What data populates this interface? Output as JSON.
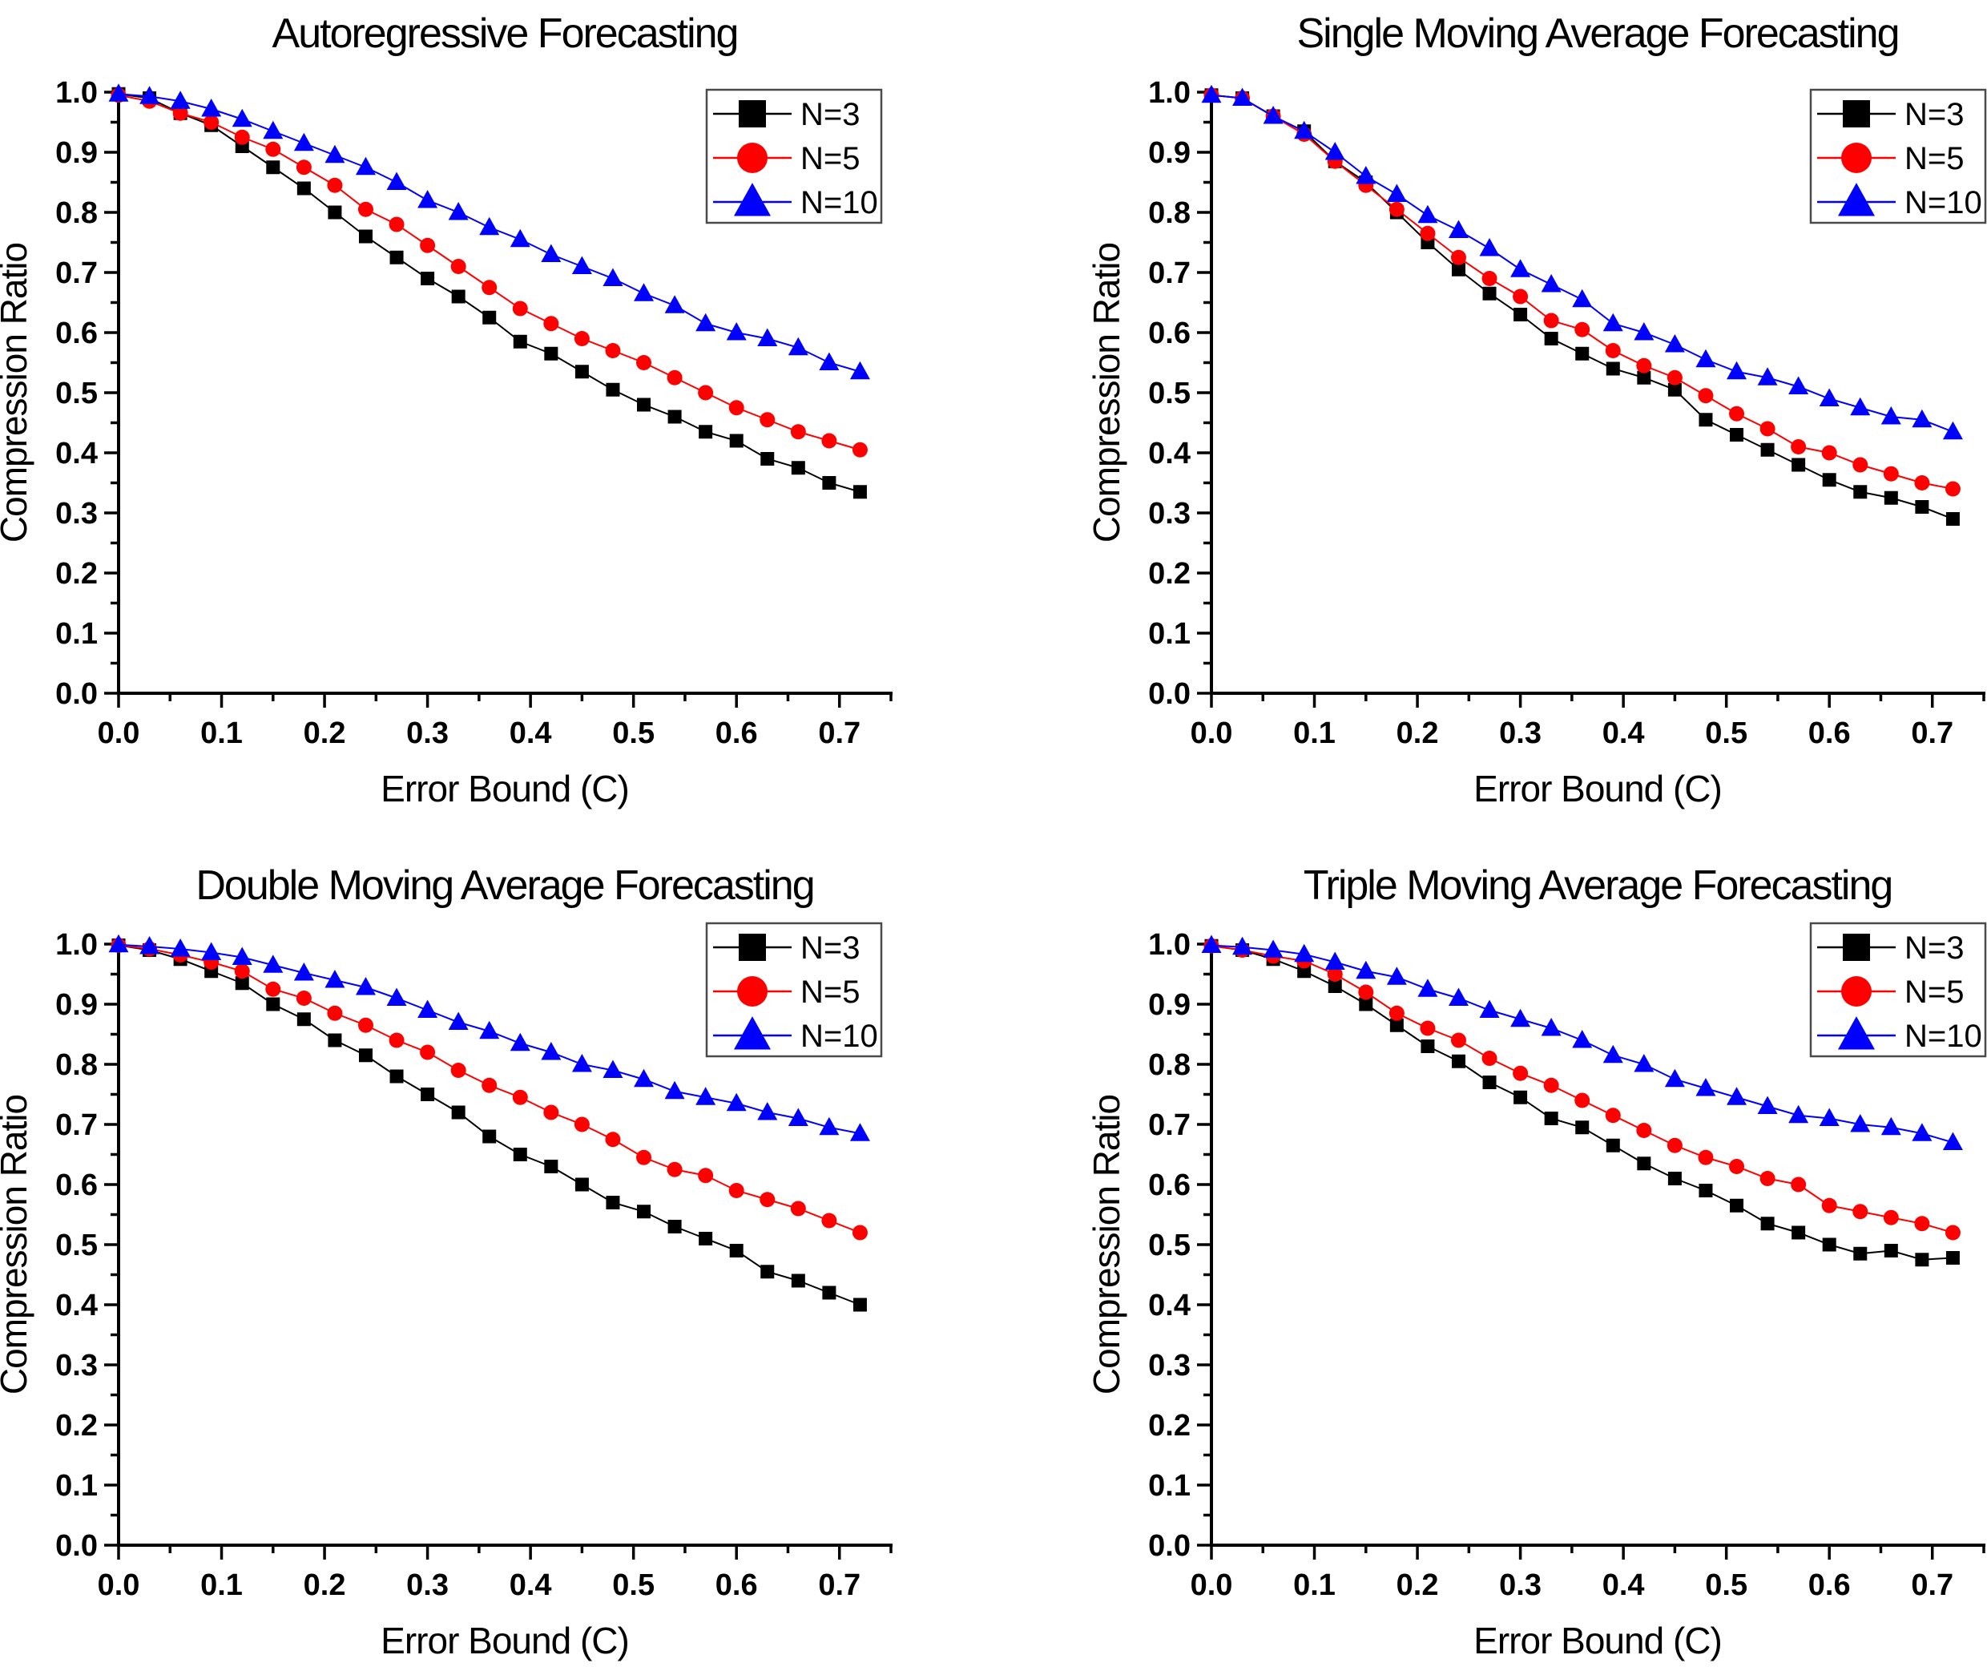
{
  "figure": {
    "background": "#ffffff",
    "x_label": "Error Bound (C)",
    "y_label": "Compression Ratio",
    "legend_labels": [
      "N=3",
      "N=5",
      "N=10"
    ],
    "series_colors": [
      "#000000",
      "#ff0000",
      "#0000ff"
    ],
    "series_markers": [
      "square",
      "circle",
      "triangle"
    ]
  },
  "chart_data": [
    {
      "type": "line",
      "title": "Autoregressive Forecasting",
      "xlabel": "Error Bound (C)",
      "ylabel": "Compression Ratio",
      "xlim": [
        0,
        0.75
      ],
      "ylim": [
        0.0,
        1.0
      ],
      "x_ticks": [
        0.0,
        0.1,
        0.2,
        0.3,
        0.4,
        0.5,
        0.6,
        0.7
      ],
      "y_ticks": [
        0.0,
        0.1,
        0.2,
        0.3,
        0.4,
        0.5,
        0.6,
        0.7,
        0.8,
        0.9,
        1.0
      ],
      "legend_position": "top-right",
      "x": [
        0.0,
        0.03,
        0.06,
        0.09,
        0.12,
        0.15,
        0.18,
        0.21,
        0.24,
        0.27,
        0.3,
        0.33,
        0.36,
        0.39,
        0.42,
        0.45,
        0.48,
        0.51,
        0.54,
        0.57,
        0.6,
        0.63,
        0.66,
        0.69,
        0.72
      ],
      "series": [
        {
          "name": "N=3",
          "color": "#000000",
          "marker": "square",
          "values": [
            0.997,
            0.99,
            0.965,
            0.945,
            0.91,
            0.875,
            0.84,
            0.8,
            0.76,
            0.725,
            0.69,
            0.66,
            0.625,
            0.585,
            0.565,
            0.535,
            0.505,
            0.48,
            0.46,
            0.435,
            0.42,
            0.39,
            0.375,
            0.35,
            0.335
          ]
        },
        {
          "name": "N=5",
          "color": "#ff0000",
          "marker": "circle",
          "values": [
            0.995,
            0.985,
            0.965,
            0.95,
            0.925,
            0.905,
            0.875,
            0.845,
            0.805,
            0.78,
            0.745,
            0.71,
            0.675,
            0.64,
            0.615,
            0.59,
            0.57,
            0.55,
            0.525,
            0.5,
            0.475,
            0.455,
            0.435,
            0.42,
            0.405
          ]
        },
        {
          "name": "N=10",
          "color": "#0000ff",
          "marker": "triangle",
          "values": [
            0.997,
            0.993,
            0.985,
            0.972,
            0.955,
            0.935,
            0.915,
            0.895,
            0.875,
            0.85,
            0.82,
            0.8,
            0.775,
            0.755,
            0.73,
            0.71,
            0.69,
            0.665,
            0.645,
            0.615,
            0.6,
            0.59,
            0.575,
            0.55,
            0.535
          ]
        }
      ]
    },
    {
      "type": "line",
      "title": "Single Moving Average Forecasting",
      "xlabel": "Error Bound (C)",
      "ylabel": "Compression Ratio",
      "xlim": [
        0,
        0.75
      ],
      "ylim": [
        0.0,
        1.0
      ],
      "x_ticks": [
        0.0,
        0.1,
        0.2,
        0.3,
        0.4,
        0.5,
        0.6,
        0.7
      ],
      "y_ticks": [
        0.0,
        0.1,
        0.2,
        0.3,
        0.4,
        0.5,
        0.6,
        0.7,
        0.8,
        0.9,
        1.0
      ],
      "legend_position": "top-right",
      "x": [
        0.0,
        0.03,
        0.06,
        0.09,
        0.12,
        0.15,
        0.18,
        0.21,
        0.24,
        0.27,
        0.3,
        0.33,
        0.36,
        0.39,
        0.42,
        0.45,
        0.48,
        0.51,
        0.54,
        0.57,
        0.6,
        0.63,
        0.66,
        0.69,
        0.72
      ],
      "series": [
        {
          "name": "N=3",
          "color": "#000000",
          "marker": "square",
          "values": [
            0.995,
            0.99,
            0.96,
            0.935,
            0.885,
            0.85,
            0.8,
            0.75,
            0.705,
            0.665,
            0.63,
            0.59,
            0.565,
            0.54,
            0.525,
            0.505,
            0.455,
            0.43,
            0.405,
            0.38,
            0.355,
            0.335,
            0.325,
            0.31,
            0.29
          ]
        },
        {
          "name": "N=5",
          "color": "#ff0000",
          "marker": "circle",
          "values": [
            0.995,
            0.99,
            0.96,
            0.93,
            0.885,
            0.845,
            0.805,
            0.765,
            0.725,
            0.69,
            0.66,
            0.62,
            0.605,
            0.57,
            0.545,
            0.525,
            0.495,
            0.465,
            0.44,
            0.41,
            0.4,
            0.38,
            0.365,
            0.35,
            0.34
          ]
        },
        {
          "name": "N=10",
          "color": "#0000ff",
          "marker": "triangle",
          "values": [
            0.995,
            0.99,
            0.96,
            0.935,
            0.9,
            0.86,
            0.83,
            0.795,
            0.77,
            0.74,
            0.705,
            0.68,
            0.655,
            0.615,
            0.6,
            0.58,
            0.555,
            0.535,
            0.525,
            0.51,
            0.49,
            0.475,
            0.46,
            0.455,
            0.435
          ]
        }
      ]
    },
    {
      "type": "line",
      "title": "Double Moving Average Forecasting",
      "xlabel": "Error Bound (C)",
      "ylabel": "Compression Ratio",
      "xlim": [
        0,
        0.75
      ],
      "ylim": [
        0.0,
        1.0
      ],
      "x_ticks": [
        0.0,
        0.1,
        0.2,
        0.3,
        0.4,
        0.5,
        0.6,
        0.7
      ],
      "y_ticks": [
        0.0,
        0.1,
        0.2,
        0.3,
        0.4,
        0.5,
        0.6,
        0.7,
        0.8,
        0.9,
        1.0
      ],
      "legend_position": "top-right",
      "x": [
        0.0,
        0.03,
        0.06,
        0.09,
        0.12,
        0.15,
        0.18,
        0.21,
        0.24,
        0.27,
        0.3,
        0.33,
        0.36,
        0.39,
        0.42,
        0.45,
        0.48,
        0.51,
        0.54,
        0.57,
        0.6,
        0.63,
        0.66,
        0.69,
        0.72
      ],
      "series": [
        {
          "name": "N=3",
          "color": "#000000",
          "marker": "square",
          "values": [
            0.998,
            0.99,
            0.975,
            0.955,
            0.935,
            0.9,
            0.875,
            0.84,
            0.815,
            0.78,
            0.75,
            0.72,
            0.68,
            0.65,
            0.63,
            0.6,
            0.57,
            0.555,
            0.53,
            0.51,
            0.49,
            0.455,
            0.44,
            0.42,
            0.4
          ]
        },
        {
          "name": "N=5",
          "color": "#ff0000",
          "marker": "circle",
          "values": [
            0.998,
            0.992,
            0.982,
            0.97,
            0.955,
            0.925,
            0.91,
            0.885,
            0.865,
            0.84,
            0.82,
            0.79,
            0.765,
            0.745,
            0.72,
            0.7,
            0.675,
            0.645,
            0.625,
            0.615,
            0.59,
            0.575,
            0.56,
            0.54,
            0.52
          ]
        },
        {
          "name": "N=10",
          "color": "#0000ff",
          "marker": "triangle",
          "values": [
            0.999,
            0.996,
            0.992,
            0.986,
            0.978,
            0.965,
            0.952,
            0.94,
            0.928,
            0.91,
            0.89,
            0.87,
            0.855,
            0.835,
            0.82,
            0.8,
            0.79,
            0.775,
            0.755,
            0.745,
            0.735,
            0.72,
            0.71,
            0.695,
            0.685
          ]
        }
      ]
    },
    {
      "type": "line",
      "title": "Triple Moving Average Forecasting",
      "xlabel": "Error Bound (C)",
      "ylabel": "Compression Ratio",
      "xlim": [
        0,
        0.75
      ],
      "ylim": [
        0.0,
        1.0
      ],
      "x_ticks": [
        0.0,
        0.1,
        0.2,
        0.3,
        0.4,
        0.5,
        0.6,
        0.7
      ],
      "y_ticks": [
        0.0,
        0.1,
        0.2,
        0.3,
        0.4,
        0.5,
        0.6,
        0.7,
        0.8,
        0.9,
        1.0
      ],
      "legend_position": "top-right",
      "x": [
        0.0,
        0.03,
        0.06,
        0.09,
        0.12,
        0.15,
        0.18,
        0.21,
        0.24,
        0.27,
        0.3,
        0.33,
        0.36,
        0.39,
        0.42,
        0.45,
        0.48,
        0.51,
        0.54,
        0.57,
        0.6,
        0.63,
        0.66,
        0.69,
        0.72
      ],
      "series": [
        {
          "name": "N=3",
          "color": "#000000",
          "marker": "square",
          "values": [
            0.997,
            0.99,
            0.975,
            0.955,
            0.93,
            0.9,
            0.865,
            0.83,
            0.805,
            0.77,
            0.745,
            0.71,
            0.695,
            0.665,
            0.635,
            0.61,
            0.59,
            0.565,
            0.535,
            0.52,
            0.5,
            0.485,
            0.49,
            0.475,
            0.478
          ]
        },
        {
          "name": "N=5",
          "color": "#ff0000",
          "marker": "circle",
          "values": [
            0.997,
            0.99,
            0.98,
            0.972,
            0.95,
            0.92,
            0.885,
            0.86,
            0.84,
            0.81,
            0.785,
            0.765,
            0.74,
            0.715,
            0.69,
            0.665,
            0.645,
            0.63,
            0.61,
            0.6,
            0.565,
            0.555,
            0.545,
            0.535,
            0.52
          ]
        },
        {
          "name": "N=10",
          "color": "#0000ff",
          "marker": "triangle",
          "values": [
            0.998,
            0.995,
            0.99,
            0.983,
            0.97,
            0.955,
            0.945,
            0.925,
            0.91,
            0.89,
            0.875,
            0.86,
            0.84,
            0.815,
            0.8,
            0.775,
            0.76,
            0.745,
            0.73,
            0.715,
            0.71,
            0.7,
            0.695,
            0.685,
            0.67
          ]
        }
      ]
    }
  ]
}
